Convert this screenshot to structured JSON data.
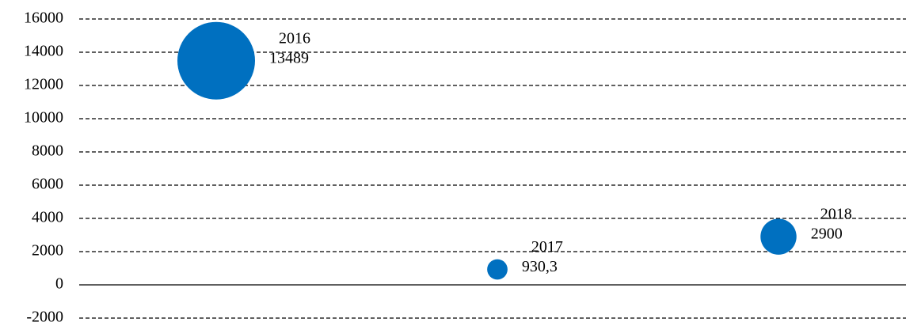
{
  "chart_data": {
    "type": "bubble",
    "categories": [
      "2016",
      "2017",
      "2018"
    ],
    "series": [
      {
        "color": "#0070c0",
        "values": [
          13489,
          930.3,
          2900
        ],
        "value_labels": [
          "13489",
          "930,3",
          "2900"
        ]
      }
    ],
    "sizes": [
      13489,
      930.3,
      2900
    ],
    "ylim": [
      -2000,
      16000
    ],
    "yticks": [
      -2000,
      0,
      2000,
      4000,
      6000,
      8000,
      10000,
      12000,
      14000,
      16000
    ],
    "grid": true
  }
}
